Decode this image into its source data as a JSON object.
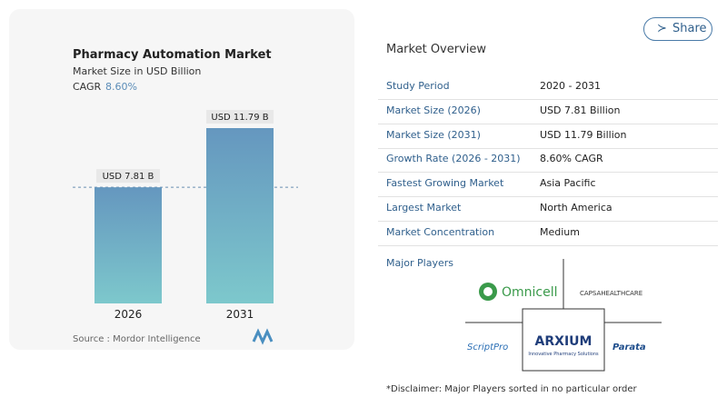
{
  "chart_data": {
    "type": "bar",
    "title": "Pharmacy Automation Market",
    "subtitle": "Market Size in USD Billion",
    "cagr_label": "CAGR",
    "cagr": "8.60%",
    "categories": [
      "2026",
      "2031"
    ],
    "values": [
      7.81,
      11.79
    ],
    "value_labels": [
      "USD 7.81 B",
      "USD 11.79 B"
    ],
    "source": "Source : Mordor Intelligence"
  },
  "share_button": "Share",
  "overview": {
    "title": "Market Overview",
    "rows": [
      [
        "Study Period",
        "2020 - 2031"
      ],
      [
        "Market Size (2026)",
        "USD 7.81 Billion"
      ],
      [
        "Market Size (2031)",
        "USD 11.79 Billion"
      ],
      [
        "Growth Rate (2026 - 2031)",
        "8.60% CAGR"
      ],
      [
        "Fastest Growing Market",
        "Asia Pacific"
      ],
      [
        "Largest Market",
        "North America"
      ],
      [
        "Market Concentration",
        "Medium"
      ]
    ]
  },
  "players": {
    "title": "Major Players",
    "logos": [
      "Omnicell",
      "CAPSAHEALTHCARE",
      "ScriptPro",
      "ARXIUM",
      "Parata"
    ],
    "arxium_tagline": "Innovative Pharmacy Solutions"
  },
  "disclaimer": "*Disclaimer: Major Players sorted in no particular order"
}
